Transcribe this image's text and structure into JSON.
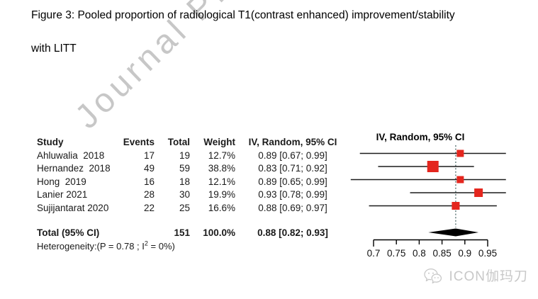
{
  "figure": {
    "title_line1": "Figure 3: Pooled proportion of radiological T1(contrast enhanced) improvement/stability",
    "title_line2": "with LITT"
  },
  "watermark": {
    "text": "Journal Pre",
    "color": "#9a9a9a"
  },
  "table": {
    "headers": {
      "study": "Study",
      "events": "Events",
      "total": "Total",
      "weight": "Weight",
      "ci": "IV, Random, 95% CI"
    },
    "heterogeneity": {
      "prefix": "Heterogeneity:(P = 0.78 ; I",
      "sup": "2",
      "suffix": " = 0%)"
    }
  },
  "plot": {
    "header": "IV, Random, 95% CI",
    "marker_color": "#e4261e",
    "diamond_color": "#000000",
    "ci_line_color": "#1b1b1b",
    "dashed_line_color": "#2f4f4f"
  },
  "chart_data": {
    "type": "forest",
    "title": "Pooled proportion of radiological T1(contrast enhanced) improvement/stability with LITT",
    "effect_label": "IV, Random, 95% CI",
    "studies": [
      {
        "study": "Ahluwalia  2018",
        "events": 17,
        "total": 19,
        "weight_pct": 12.7,
        "estimate": 0.89,
        "ci_low": 0.67,
        "ci_high": 0.99
      },
      {
        "study": "Hernandez  2018",
        "events": 49,
        "total": 59,
        "weight_pct": 38.8,
        "estimate": 0.83,
        "ci_low": 0.71,
        "ci_high": 0.92
      },
      {
        "study": "Hong  2019",
        "events": 16,
        "total": 18,
        "weight_pct": 12.1,
        "estimate": 0.89,
        "ci_low": 0.65,
        "ci_high": 0.99
      },
      {
        "study": "Lanier 2021",
        "events": 28,
        "total": 30,
        "weight_pct": 19.9,
        "estimate": 0.93,
        "ci_low": 0.78,
        "ci_high": 0.99
      },
      {
        "study": "Sujijantarat 2020",
        "events": 22,
        "total": 25,
        "weight_pct": 16.6,
        "estimate": 0.88,
        "ci_low": 0.69,
        "ci_high": 0.97
      }
    ],
    "pooled": {
      "label": "Total (95% CI)",
      "total": 151,
      "weight_pct": 100.0,
      "estimate": 0.88,
      "ci_low": 0.82,
      "ci_high": 0.93
    },
    "heterogeneity_text": "Heterogeneity:(P = 0.78 ; I2 = 0%)",
    "x_ticks": [
      0.7,
      0.75,
      0.8,
      0.85,
      0.9,
      0.95
    ],
    "xlim": [
      0.7,
      0.95
    ],
    "grid": false
  },
  "footer": {
    "brand": "ICON伽玛刀",
    "icon": "wechat-icon",
    "color": "#c8c8c8"
  }
}
